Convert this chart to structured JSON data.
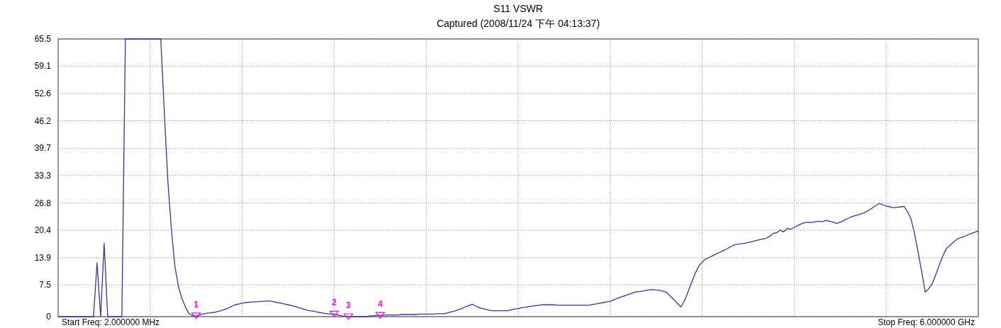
{
  "chart_data": {
    "type": "line",
    "title": "S11 VSWR",
    "subtitle": "Captured  (2008/11/24 下午 04:13:37)",
    "categories": [
      null,
      null,
      null,
      null,
      null,
      null,
      null,
      null,
      null,
      null,
      null,
      null,
      null,
      null,
      null,
      null,
      null,
      null,
      null,
      null,
      null,
      null,
      null,
      null,
      null,
      null,
      null,
      null,
      null,
      null,
      null,
      null,
      null,
      null,
      null,
      null,
      null,
      null,
      null,
      null,
      null,
      null,
      null,
      null,
      null,
      null,
      null,
      null,
      null,
      null,
      null,
      null,
      null,
      null,
      null,
      null,
      null,
      null,
      null,
      null,
      null,
      null,
      null,
      null,
      null,
      null,
      null,
      null,
      null,
      null,
      null,
      null,
      null,
      null,
      null,
      null,
      null,
      null,
      null,
      null,
      null,
      null,
      null,
      null,
      null,
      null,
      null,
      null,
      null,
      null,
      null,
      null,
      null,
      null,
      null,
      null,
      null,
      null,
      null,
      null,
      null,
      null,
      null,
      null,
      null,
      null,
      null,
      null,
      null,
      null,
      null,
      null,
      null,
      null,
      null,
      null,
      null,
      null,
      null,
      null,
      null,
      null,
      null,
      null,
      null,
      null,
      null,
      null,
      null,
      null,
      null,
      null,
      null,
      null,
      null,
      null,
      null,
      null,
      null,
      null,
      null,
      null,
      null,
      null,
      null,
      null,
      null,
      null,
      null,
      null,
      null,
      null,
      null,
      null,
      null,
      null,
      null,
      null,
      null,
      null,
      null,
      null,
      null,
      null,
      null,
      null,
      null,
      null,
      null,
      null,
      null,
      null,
      null,
      null,
      null,
      null,
      null,
      null,
      null,
      null,
      null,
      null,
      null,
      null,
      null,
      null,
      null,
      null,
      null,
      null,
      null,
      null,
      null,
      null,
      null,
      null,
      null,
      null,
      null,
      null,
      null,
      null,
      null,
      null,
      null,
      null,
      null,
      null,
      null,
      null,
      null,
      null,
      null,
      null,
      null,
      null,
      null,
      null,
      null,
      null,
      null,
      null,
      null,
      null,
      null,
      null,
      null,
      null,
      null,
      null,
      null,
      null,
      null,
      null,
      null,
      null,
      null,
      null,
      null,
      null,
      null,
      null,
      null,
      null,
      null,
      null,
      null,
      null,
      null,
      null,
      null,
      null,
      null,
      null,
      null,
      null,
      null,
      null,
      null,
      null,
      null
    ],
    "series": [
      {
        "color": "#3333aa",
        "values": [
          0,
          0,
          0,
          0,
          0,
          0,
          0,
          0,
          0,
          0,
          0,
          12.7,
          0,
          17.3,
          0,
          0,
          0,
          0,
          0,
          65.5,
          65.5,
          65.5,
          65.5,
          65.5,
          65.5,
          65.5,
          65.5,
          65.5,
          65.5,
          65.5,
          48.2,
          32.0,
          20.6,
          11.8,
          7.1,
          4.2,
          2.2,
          0.7,
          0.2,
          0.2,
          0.4,
          0.6,
          0.8,
          0.9,
          1.0,
          1.2,
          1.4,
          1.7,
          2.0,
          2.4,
          2.8,
          3.0,
          3.2,
          3.3,
          3.4,
          3.5,
          3.5,
          3.6,
          3.6,
          3.7,
          3.7,
          3.5,
          3.3,
          3.2,
          3.0,
          2.8,
          2.6,
          2.4,
          2.1,
          1.9,
          1.6,
          1.4,
          1.3,
          1.1,
          1.0,
          0.8,
          0.7,
          0.6,
          0.6,
          0.4,
          0.2,
          0.1,
          0,
          0,
          0,
          0,
          0,
          0,
          0.2,
          0.2,
          0.3,
          0.3,
          0.3,
          0.4,
          0.4,
          0.4,
          0.4,
          0.5,
          0.5,
          0.5,
          0.5,
          0.5,
          0.6,
          0.6,
          0.6,
          0.6,
          0.6,
          0.7,
          0.7,
          0.7,
          0.9,
          1.1,
          1.3,
          1.6,
          1.9,
          2.3,
          2.6,
          2.9,
          2.5,
          2.1,
          1.9,
          1.7,
          1.5,
          1.4,
          1.4,
          1.4,
          1.4,
          1.4,
          1.6,
          1.8,
          1.9,
          2.1,
          2.2,
          2.4,
          2.5,
          2.6,
          2.7,
          2.8,
          2.8,
          2.8,
          2.8,
          2.7,
          2.7,
          2.7,
          2.7,
          2.7,
          2.7,
          2.7,
          2.7,
          2.7,
          2.7,
          2.9,
          3.0,
          3.2,
          3.3,
          3.5,
          3.6,
          4.0,
          4.3,
          4.6,
          4.9,
          5.2,
          5.5,
          5.8,
          5.9,
          6.0,
          6.2,
          6.3,
          6.4,
          6.3,
          6.2,
          6.0,
          5.7,
          4.8,
          4.0,
          3.1,
          2.3,
          3.8,
          5.9,
          8.1,
          10.2,
          11.9,
          12.9,
          13.6,
          14.0,
          14.4,
          14.8,
          15.2,
          15.6,
          16.0,
          16.5,
          16.9,
          17.1,
          17.2,
          17.3,
          17.5,
          17.7,
          17.9,
          18.1,
          18.3,
          18.5,
          18.9,
          19.6,
          19.8,
          20.4,
          20.0,
          20.8,
          20.6,
          21.1,
          21.5,
          21.9,
          22.2,
          22.3,
          22.2,
          22.4,
          22.5,
          22.4,
          22.7,
          22.5,
          22.3,
          22.0,
          22.3,
          22.7,
          23.1,
          23.5,
          23.8,
          24.0,
          24.3,
          24.6,
          25.1,
          25.6,
          26.2,
          26.7,
          26.4,
          26.1,
          25.9,
          25.7,
          25.8,
          25.9,
          26.0,
          24.8,
          23.0,
          19.5,
          15.2,
          10.6,
          5.8,
          6.6,
          7.8,
          10.0,
          12.2,
          14.4,
          16.1,
          16.8,
          17.6,
          18.3,
          18.6,
          18.9,
          19.3,
          19.6,
          19.9,
          20.2
        ]
      },
      {
        "type": "scatter",
        "name": "1",
        "color": "#ff00ff",
        "marker": "triangle",
        "values": [
          null,
          null,
          null,
          null,
          null,
          null,
          null,
          null,
          null,
          null,
          null,
          null,
          null,
          null,
          null,
          null,
          null,
          null,
          null,
          null,
          null,
          null,
          null,
          null,
          null,
          null,
          null,
          null,
          null,
          null,
          null,
          null,
          null,
          null,
          null,
          null,
          null,
          null,
          null,
          0.2,
          null,
          null,
          null,
          null,
          null,
          null,
          null,
          null,
          null,
          null,
          null,
          null,
          null,
          null,
          null,
          null,
          null,
          null,
          null,
          null,
          null,
          null,
          null,
          null,
          null,
          null,
          null,
          null,
          null,
          null,
          null,
          null,
          null,
          null,
          null,
          null,
          null,
          null,
          null,
          null,
          null,
          null,
          null,
          null,
          null,
          null,
          null,
          null,
          null,
          null,
          null,
          null,
          null,
          null,
          null,
          null,
          null,
          null,
          null,
          null,
          null,
          null,
          null,
          null,
          null,
          null,
          null,
          null,
          null,
          null,
          null,
          null,
          null,
          null,
          null,
          null,
          null,
          null,
          null,
          null,
          null,
          null,
          null,
          null,
          null,
          null,
          null,
          null,
          null,
          null,
          null,
          null,
          null,
          null,
          null,
          null,
          null,
          null,
          null,
          null,
          null,
          null,
          null,
          null,
          null,
          null,
          null,
          null,
          null,
          null,
          null,
          null,
          null,
          null,
          null,
          null,
          null,
          null,
          null,
          null,
          null,
          null,
          null,
          null,
          null,
          null,
          null,
          null,
          null,
          null,
          null,
          null,
          null,
          null,
          null,
          null,
          null,
          null,
          null,
          null,
          null,
          null,
          null,
          null,
          null,
          null,
          null,
          null,
          null,
          null,
          null,
          null,
          null,
          null,
          null,
          null,
          null,
          null,
          null,
          null,
          null,
          null,
          null,
          null,
          null,
          null,
          null,
          null,
          null,
          null,
          null,
          null,
          null,
          null,
          null,
          null,
          null,
          null,
          null,
          null,
          null,
          null,
          null,
          null,
          null,
          null,
          null,
          null,
          null,
          null,
          null,
          null,
          null,
          null,
          null,
          null,
          null,
          null,
          null,
          null,
          null,
          null,
          null,
          null,
          null,
          null,
          null,
          null,
          null,
          null,
          null,
          null,
          null,
          null,
          null,
          null,
          null,
          null,
          null,
          null,
          null
        ]
      },
      {
        "type": "scatter",
        "name": "2",
        "color": "#ff00ff",
        "marker": "triangle",
        "values": [
          null,
          null,
          null,
          null,
          null,
          null,
          null,
          null,
          null,
          null,
          null,
          null,
          null,
          null,
          null,
          null,
          null,
          null,
          null,
          null,
          null,
          null,
          null,
          null,
          null,
          null,
          null,
          null,
          null,
          null,
          null,
          null,
          null,
          null,
          null,
          null,
          null,
          null,
          null,
          null,
          null,
          null,
          null,
          null,
          null,
          null,
          null,
          null,
          null,
          null,
          null,
          null,
          null,
          null,
          null,
          null,
          null,
          null,
          null,
          null,
          null,
          null,
          null,
          null,
          null,
          null,
          null,
          null,
          null,
          null,
          null,
          null,
          null,
          null,
          null,
          null,
          null,
          null,
          0.6,
          null,
          null,
          null,
          null,
          null,
          null,
          null,
          null,
          null,
          null,
          null,
          null,
          null,
          null,
          null,
          null,
          null,
          null,
          null,
          null,
          null,
          null,
          null,
          null,
          null,
          null,
          null,
          null,
          null,
          null,
          null,
          null,
          null,
          null,
          null,
          null,
          null,
          null,
          null,
          null,
          null,
          null,
          null,
          null,
          null,
          null,
          null,
          null,
          null,
          null,
          null,
          null,
          null,
          null,
          null,
          null,
          null,
          null,
          null,
          null,
          null,
          null,
          null,
          null,
          null,
          null,
          null,
          null,
          null,
          null,
          null,
          null,
          null,
          null,
          null,
          null,
          null,
          null,
          null,
          null,
          null,
          null,
          null,
          null,
          null,
          null,
          null,
          null,
          null,
          null,
          null,
          null,
          null,
          null,
          null,
          null,
          null,
          null,
          null,
          null,
          null,
          null,
          null,
          null,
          null,
          null,
          null,
          null,
          null,
          null,
          null,
          null,
          null,
          null,
          null,
          null,
          null,
          null,
          null,
          null,
          null,
          null,
          null,
          null,
          null,
          null,
          null,
          null,
          null,
          null,
          null,
          null,
          null,
          null,
          null,
          null,
          null,
          null,
          null,
          null,
          null,
          null,
          null,
          null,
          null,
          null,
          null,
          null,
          null,
          null,
          null,
          null,
          null,
          null,
          null,
          null,
          null,
          null,
          null,
          null,
          null,
          null,
          null,
          null,
          null,
          null,
          null,
          null,
          null,
          null,
          null,
          null,
          null,
          null,
          null,
          null,
          null,
          null,
          null,
          null,
          null,
          null
        ]
      },
      {
        "type": "scatter",
        "name": "3",
        "color": "#ff00ff",
        "marker": "triangle",
        "values": [
          null,
          null,
          null,
          null,
          null,
          null,
          null,
          null,
          null,
          null,
          null,
          null,
          null,
          null,
          null,
          null,
          null,
          null,
          null,
          null,
          null,
          null,
          null,
          null,
          null,
          null,
          null,
          null,
          null,
          null,
          null,
          null,
          null,
          null,
          null,
          null,
          null,
          null,
          null,
          null,
          null,
          null,
          null,
          null,
          null,
          null,
          null,
          null,
          null,
          null,
          null,
          null,
          null,
          null,
          null,
          null,
          null,
          null,
          null,
          null,
          null,
          null,
          null,
          null,
          null,
          null,
          null,
          null,
          null,
          null,
          null,
          null,
          null,
          null,
          null,
          null,
          null,
          null,
          null,
          null,
          null,
          null,
          0,
          null,
          null,
          null,
          null,
          null,
          null,
          null,
          null,
          null,
          null,
          null,
          null,
          null,
          null,
          null,
          null,
          null,
          null,
          null,
          null,
          null,
          null,
          null,
          null,
          null,
          null,
          null,
          null,
          null,
          null,
          null,
          null,
          null,
          null,
          null,
          null,
          null,
          null,
          null,
          null,
          null,
          null,
          null,
          null,
          null,
          null,
          null,
          null,
          null,
          null,
          null,
          null,
          null,
          null,
          null,
          null,
          null,
          null,
          null,
          null,
          null,
          null,
          null,
          null,
          null,
          null,
          null,
          null,
          null,
          null,
          null,
          null,
          null,
          null,
          null,
          null,
          null,
          null,
          null,
          null,
          null,
          null,
          null,
          null,
          null,
          null,
          null,
          null,
          null,
          null,
          null,
          null,
          null,
          null,
          null,
          null,
          null,
          null,
          null,
          null,
          null,
          null,
          null,
          null,
          null,
          null,
          null,
          null,
          null,
          null,
          null,
          null,
          null,
          null,
          null,
          null,
          null,
          null,
          null,
          null,
          null,
          null,
          null,
          null,
          null,
          null,
          null,
          null,
          null,
          null,
          null,
          null,
          null,
          null,
          null,
          null,
          null,
          null,
          null,
          null,
          null,
          null,
          null,
          null,
          null,
          null,
          null,
          null,
          null,
          null,
          null,
          null,
          null,
          null,
          null,
          null,
          null,
          null,
          null,
          null,
          null,
          null,
          null,
          null,
          null,
          null,
          null,
          null,
          null,
          null,
          null,
          null,
          null,
          null,
          null,
          null,
          null,
          null
        ]
      },
      {
        "type": "scatter",
        "name": "4",
        "color": "#ff00ff",
        "marker": "triangle",
        "values": [
          null,
          null,
          null,
          null,
          null,
          null,
          null,
          null,
          null,
          null,
          null,
          null,
          null,
          null,
          null,
          null,
          null,
          null,
          null,
          null,
          null,
          null,
          null,
          null,
          null,
          null,
          null,
          null,
          null,
          null,
          null,
          null,
          null,
          null,
          null,
          null,
          null,
          null,
          null,
          null,
          null,
          null,
          null,
          null,
          null,
          null,
          null,
          null,
          null,
          null,
          null,
          null,
          null,
          null,
          null,
          null,
          null,
          null,
          null,
          null,
          null,
          null,
          null,
          null,
          null,
          null,
          null,
          null,
          null,
          null,
          null,
          null,
          null,
          null,
          null,
          null,
          null,
          null,
          null,
          null,
          null,
          null,
          null,
          null,
          null,
          null,
          null,
          null,
          null,
          null,
          null,
          0.3,
          null,
          null,
          null,
          null,
          null,
          null,
          null,
          null,
          null,
          null,
          null,
          null,
          null,
          null,
          null,
          null,
          null,
          null,
          null,
          null,
          null,
          null,
          null,
          null,
          null,
          null,
          null,
          null,
          null,
          null,
          null,
          null,
          null,
          null,
          null,
          null,
          null,
          null,
          null,
          null,
          null,
          null,
          null,
          null,
          null,
          null,
          null,
          null,
          null,
          null,
          null,
          null,
          null,
          null,
          null,
          null,
          null,
          null,
          null,
          null,
          null,
          null,
          null,
          null,
          null,
          null,
          null,
          null,
          null,
          null,
          null,
          null,
          null,
          null,
          null,
          null,
          null,
          null,
          null,
          null,
          null,
          null,
          null,
          null,
          null,
          null,
          null,
          null,
          null,
          null,
          null,
          null,
          null,
          null,
          null,
          null,
          null,
          null,
          null,
          null,
          null,
          null,
          null,
          null,
          null,
          null,
          null,
          null,
          null,
          null,
          null,
          null,
          null,
          null,
          null,
          null,
          null,
          null,
          null,
          null,
          null,
          null,
          null,
          null,
          null,
          null,
          null,
          null,
          null,
          null,
          null,
          null,
          null,
          null,
          null,
          null,
          null,
          null,
          null,
          null,
          null,
          null,
          null,
          null,
          null,
          null,
          null,
          null,
          null,
          null,
          null,
          null,
          null,
          null,
          null,
          null,
          null,
          null,
          null,
          null,
          null,
          null,
          null,
          null,
          null,
          null,
          null,
          null,
          null
        ]
      }
    ],
    "ylim": [
      0,
      65.5
    ],
    "yticks": [
      0,
      7.5,
      13.9,
      20.4,
      26.8,
      33.3,
      39.7,
      46.2,
      52.6,
      59.1,
      65.5
    ],
    "grid": true,
    "marker": "none",
    "line_style": "solid",
    "annotations": [
      "Start Freq: 2.000000 MHz",
      "Stop Freq: 6.000000 GHz"
    ]
  }
}
